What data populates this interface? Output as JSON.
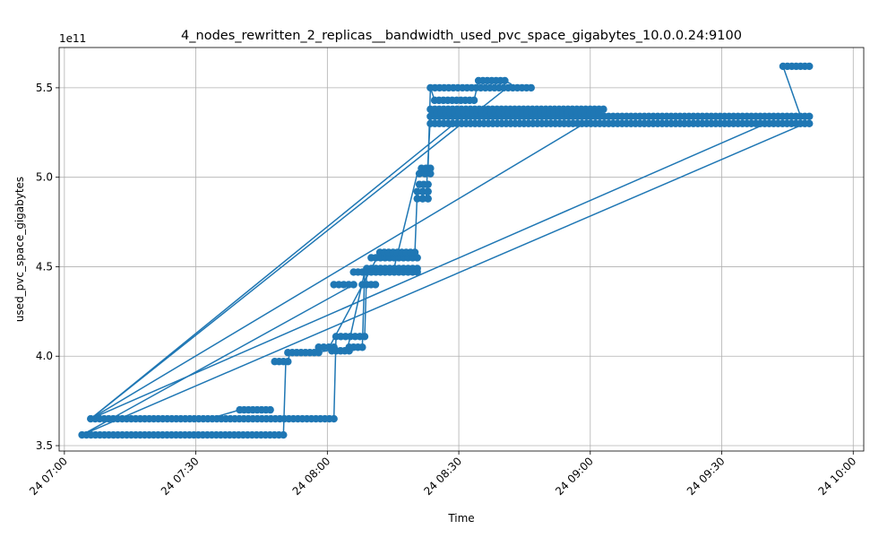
{
  "chart_data": {
    "type": "line",
    "title": "4_nodes_rewritten_2_replicas__bandwidth_used_pvc_space_gigabytes_10.0.0.24:9100",
    "xlabel": "Time",
    "ylabel": "used_pvc_space_gigabytes",
    "y_offset_label": "1e11",
    "x_tick_labels": [
      "24 07:00",
      "24 07:30",
      "24 08:00",
      "24 08:30",
      "24 09:00",
      "24 09:30",
      "24 10:00"
    ],
    "y_tick_labels": [
      "3.5",
      "4.0",
      "4.5",
      "5.0",
      "5.5"
    ],
    "x_ticks_hours": [
      7.0,
      7.5,
      8.0,
      8.5,
      9.0,
      9.5,
      10.0
    ],
    "y_ticks": [
      3.5,
      4.0,
      4.5,
      5.0,
      5.5
    ],
    "xlim_hours": [
      6.98,
      10.04
    ],
    "ylim": [
      3.47,
      5.725
    ],
    "y_multiplier": 100000000000.0,
    "grid": true,
    "line_color": "#1f77b4",
    "marker": "circle",
    "segments": [
      {
        "x": [
          7.067,
          7.833
        ],
        "y": [
          3.56,
          3.56
        ]
      },
      {
        "x": [
          7.1,
          8.025
        ],
        "y": [
          3.65,
          3.65
        ]
      },
      {
        "x": [
          7.667,
          7.783
        ],
        "y": [
          3.7,
          3.7
        ]
      },
      {
        "x": [
          7.8,
          7.85
        ],
        "y": [
          3.97,
          3.97
        ]
      },
      {
        "x": [
          7.85,
          7.967
        ],
        "y": [
          4.02,
          4.02
        ]
      },
      {
        "x": [
          7.967,
          8.025
        ],
        "y": [
          4.05,
          4.05
        ]
      },
      {
        "x": [
          8.017,
          8.083
        ],
        "y": [
          4.03,
          4.03
        ]
      },
      {
        "x": [
          8.025,
          8.1
        ],
        "y": [
          4.4,
          4.4
        ]
      },
      {
        "x": [
          8.033,
          8.142
        ],
        "y": [
          4.11,
          4.11
        ]
      },
      {
        "x": [
          8.083,
          8.133
        ],
        "y": [
          4.05,
          4.05
        ]
      },
      {
        "x": [
          8.1,
          8.15
        ],
        "y": [
          4.47,
          4.47
        ]
      },
      {
        "x": [
          8.133,
          8.183
        ],
        "y": [
          4.4,
          4.4
        ]
      },
      {
        "x": [
          8.15,
          8.342
        ],
        "y": [
          4.49,
          4.49
        ]
      },
      {
        "x": [
          8.167,
          8.342
        ],
        "y": [
          4.47,
          4.47
        ]
      },
      {
        "x": [
          8.167,
          8.342
        ],
        "y": [
          4.55,
          4.55
        ]
      },
      {
        "x": [
          8.2,
          8.333
        ],
        "y": [
          4.58,
          4.58
        ]
      },
      {
        "x": [
          8.342,
          8.383
        ],
        "y": [
          4.88,
          4.88
        ]
      },
      {
        "x": [
          8.342,
          8.383
        ],
        "y": [
          4.92,
          4.92
        ]
      },
      {
        "x": [
          8.35,
          8.383
        ],
        "y": [
          4.96,
          4.96
        ]
      },
      {
        "x": [
          8.35,
          8.392
        ],
        "y": [
          5.02,
          5.02
        ]
      },
      {
        "x": [
          8.358,
          8.392
        ],
        "y": [
          5.05,
          5.05
        ]
      },
      {
        "x": [
          8.392,
          9.833
        ],
        "y": [
          5.3,
          5.3
        ]
      },
      {
        "x": [
          8.392,
          9.833
        ],
        "y": [
          5.34,
          5.34
        ]
      },
      {
        "x": [
          8.392,
          9.05
        ],
        "y": [
          5.38,
          5.38
        ]
      },
      {
        "x": [
          8.4,
          9.033
        ],
        "y": [
          5.36,
          5.36
        ]
      },
      {
        "x": [
          8.392,
          8.775
        ],
        "y": [
          5.5,
          5.5
        ]
      },
      {
        "x": [
          8.408,
          8.558
        ],
        "y": [
          5.43,
          5.43
        ]
      },
      {
        "x": [
          8.575,
          8.675
        ],
        "y": [
          5.54,
          5.54
        ]
      },
      {
        "x": [
          9.733,
          9.833
        ],
        "y": [
          5.62,
          5.62
        ]
      }
    ],
    "connectors": [
      {
        "x": [
          7.1,
          8.7
        ],
        "y": [
          3.65,
          5.52
        ]
      },
      {
        "x": [
          7.1,
          8.5
        ],
        "y": [
          3.65,
          5.32
        ]
      },
      {
        "x": [
          7.1,
          9.0
        ],
        "y": [
          3.65,
          5.32
        ]
      },
      {
        "x": [
          7.1,
          9.7
        ],
        "y": [
          3.65,
          5.32
        ]
      },
      {
        "x": [
          7.067,
          9.817
        ],
        "y": [
          3.56,
          5.3
        ]
      },
      {
        "x": [
          7.067,
          8.1
        ],
        "y": [
          3.56,
          4.4
        ]
      },
      {
        "x": [
          7.55,
          7.667
        ],
        "y": [
          3.65,
          3.7
        ]
      },
      {
        "x": [
          7.833,
          7.842
        ],
        "y": [
          3.56,
          3.97
        ]
      },
      {
        "x": [
          7.85,
          7.858
        ],
        "y": [
          3.97,
          4.02
        ]
      },
      {
        "x": [
          8.025,
          8.033
        ],
        "y": [
          3.65,
          4.11
        ]
      },
      {
        "x": [
          8.0,
          8.2
        ],
        "y": [
          4.03,
          4.58
        ]
      },
      {
        "x": [
          8.075,
          8.142
        ],
        "y": [
          4.03,
          4.47
        ]
      },
      {
        "x": [
          8.133,
          8.142
        ],
        "y": [
          4.05,
          4.47
        ]
      },
      {
        "x": [
          8.142,
          8.15
        ],
        "y": [
          4.11,
          4.49
        ]
      },
      {
        "x": [
          8.25,
          8.342
        ],
        "y": [
          4.47,
          5.02
        ]
      },
      {
        "x": [
          8.333,
          8.342
        ],
        "y": [
          4.58,
          4.92
        ]
      },
      {
        "x": [
          8.375,
          8.392
        ],
        "y": [
          4.88,
          5.34
        ]
      },
      {
        "x": [
          8.383,
          8.392
        ],
        "y": [
          5.05,
          5.5
        ]
      },
      {
        "x": [
          8.392,
          8.408
        ],
        "y": [
          5.5,
          5.43
        ]
      },
      {
        "x": [
          8.558,
          8.575
        ],
        "y": [
          5.43,
          5.54
        ]
      },
      {
        "x": [
          8.675,
          8.7
        ],
        "y": [
          5.54,
          5.52
        ]
      },
      {
        "x": [
          9.8,
          9.733
        ],
        "y": [
          5.34,
          5.62
        ]
      },
      {
        "x": [
          7.95,
          8.0
        ],
        "y": [
          4.02,
          4.03
        ]
      }
    ]
  }
}
